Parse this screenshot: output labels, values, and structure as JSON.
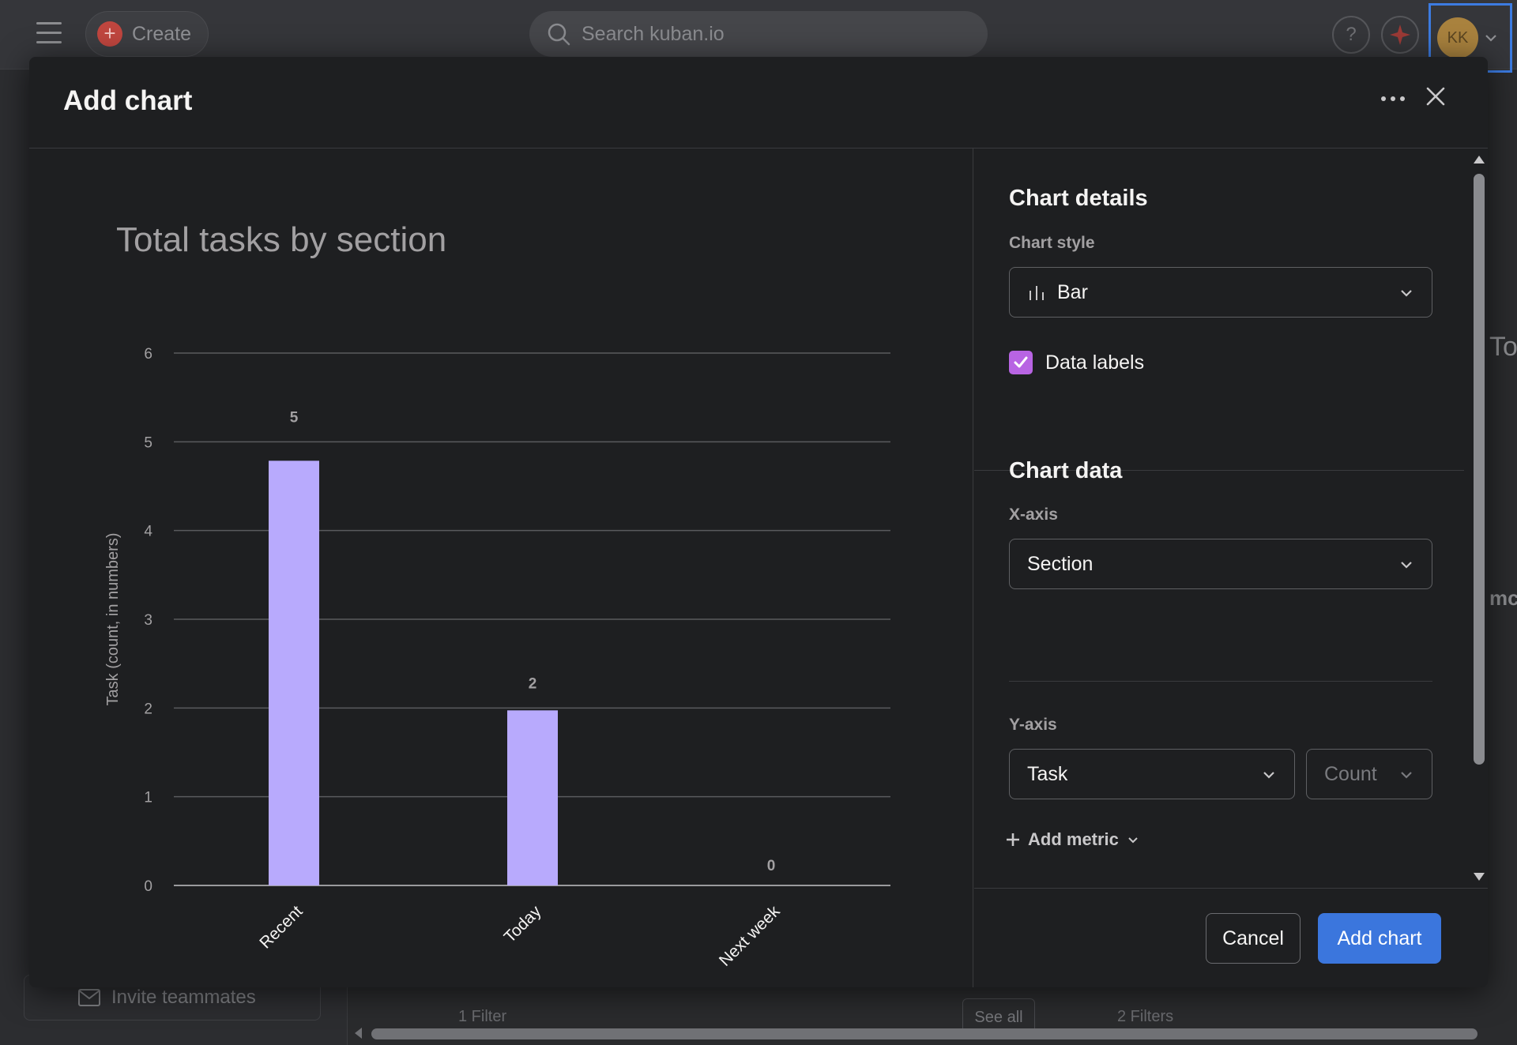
{
  "topbar": {
    "create_label": "Create",
    "search_placeholder": "Search kuban.io",
    "help_label": "?",
    "avatar_initials": "KK"
  },
  "background": {
    "invite_label": "Invite teammates",
    "filter_one": "1 Filter",
    "see_all": "See all",
    "filter_two": "2 Filters",
    "frag_one": "To",
    "frag_two": "mc"
  },
  "modal": {
    "title": "Add chart",
    "chart_details_title": "Chart details",
    "chart_style_label": "Chart style",
    "chart_style_value": "Bar",
    "data_labels_label": "Data labels",
    "data_labels_checked": true,
    "chart_data_title": "Chart data",
    "x_axis_label": "X-axis",
    "x_axis_value": "Section",
    "y_axis_label": "Y-axis",
    "y_axis_value": "Task",
    "y_axis_aggregate": "Count",
    "add_metric_label": "Add metric",
    "cancel_label": "Cancel",
    "add_chart_label": "Add chart"
  },
  "chart_data": {
    "type": "bar",
    "title": "Total tasks by section",
    "xlabel": "",
    "ylabel": "Task (count, in numbers)",
    "categories": [
      "Recent",
      "Today",
      "Next week"
    ],
    "values": [
      5,
      2,
      0
    ],
    "ylim": [
      0,
      6
    ],
    "yticks": [
      0,
      1,
      2,
      3,
      4,
      5,
      6
    ],
    "data_labels": true,
    "grid": true,
    "bar_color": "#b8aafd"
  },
  "colors": {
    "accent": "#3b76dd",
    "checkbox": "#b864e3"
  }
}
